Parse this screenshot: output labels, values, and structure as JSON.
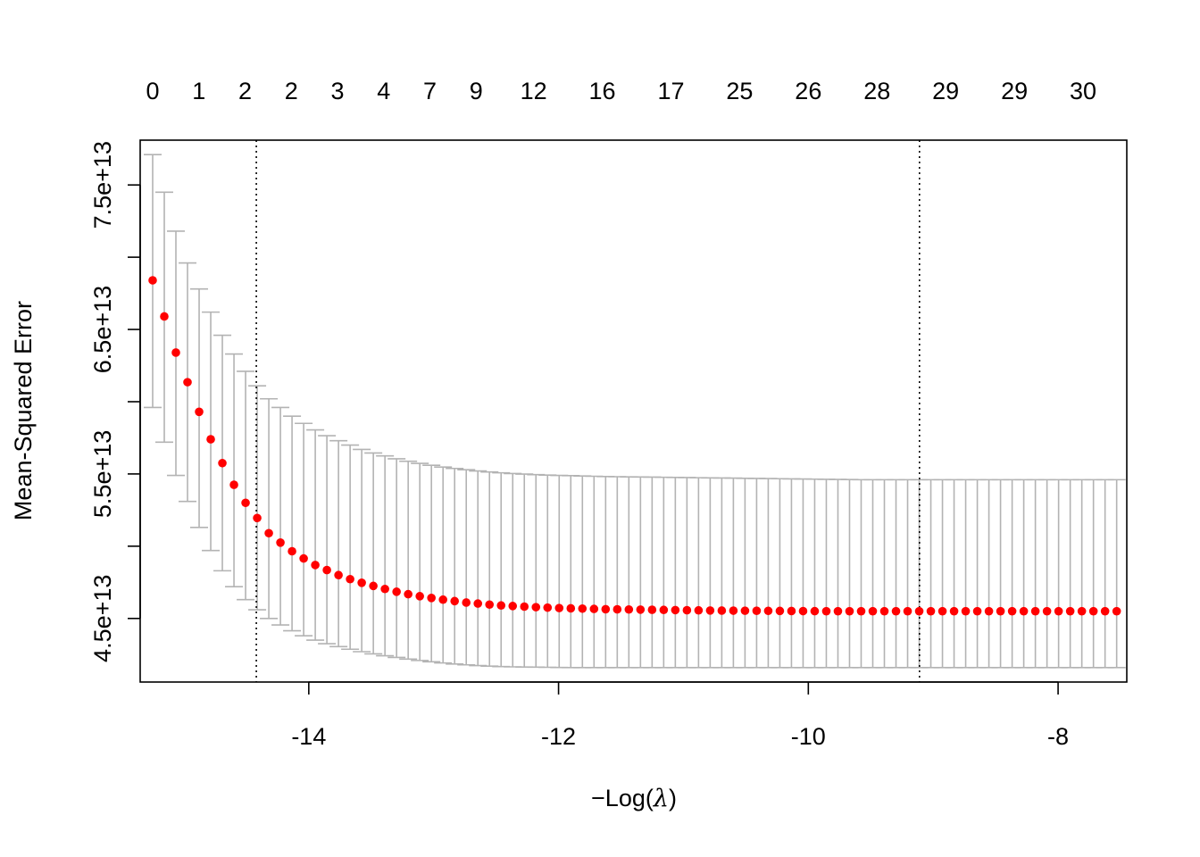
{
  "chart_data": {
    "type": "scatter",
    "xlabel": {
      "prefix": "−",
      "main": "Log(",
      "lambda": "λ",
      "suffix": ")"
    },
    "ylabel": "Mean-Squared Error",
    "xlim": [
      -15.35,
      -7.45
    ],
    "ylim": [
      40600000000000,
      78100000000000
    ],
    "x_ticks": [
      -14,
      -12,
      -10,
      -8
    ],
    "x_tick_labels": [
      "-14",
      "-12",
      "-10",
      "-8"
    ],
    "y_ticks": [
      45000000000000,
      50000000000000,
      55000000000000,
      60000000000000,
      65000000000000,
      70000000000000,
      75000000000000
    ],
    "y_tick_labels": [
      "4.5e+13",
      "",
      "5.5e+13",
      "",
      "6.5e+13",
      "",
      "7.5e+13"
    ],
    "top_axis": {
      "x": [
        -15.25,
        -14.88,
        -14.51,
        -14.14,
        -13.77,
        -13.4,
        -13.03,
        -12.66,
        -12.2,
        -11.65,
        -11.1,
        -10.55,
        -10.0,
        -9.45,
        -8.9,
        -8.35,
        -7.8
      ],
      "labels": [
        "0",
        "1",
        "2",
        "2",
        "3",
        "4",
        "7",
        "9",
        "12",
        "16",
        "17",
        "25",
        "26",
        "28",
        "29",
        "29",
        "30"
      ]
    },
    "vlines": [
      -14.42,
      -9.11
    ],
    "series": [
      {
        "x": [
          -15.25,
          -15.157,
          -15.064,
          -14.971,
          -14.878,
          -14.785,
          -14.692,
          -14.599,
          -14.506,
          -14.413,
          -14.32,
          -14.227,
          -14.134,
          -14.041,
          -13.948,
          -13.855,
          -13.762,
          -13.669,
          -13.576,
          -13.483,
          -13.39,
          -13.297,
          -13.204,
          -13.111,
          -13.018,
          -12.925,
          -12.832,
          -12.739,
          -12.646,
          -12.553,
          -12.46,
          -12.367,
          -12.274,
          -12.181,
          -12.088,
          -11.995,
          -11.902,
          -11.809,
          -11.716,
          -11.623,
          -11.53,
          -11.437,
          -11.344,
          -11.251,
          -11.158,
          -11.065,
          -10.972,
          -10.879,
          -10.786,
          -10.693,
          -10.6,
          -10.507,
          -10.414,
          -10.321,
          -10.228,
          -10.135,
          -10.042,
          -9.949,
          -9.856,
          -9.763,
          -9.67,
          -9.577,
          -9.484,
          -9.391,
          -9.298,
          -9.205,
          -9.112,
          -9.019,
          -8.926,
          -8.833,
          -8.74,
          -8.647,
          -8.554,
          -8.461,
          -8.368,
          -8.275,
          -8.182,
          -8.089,
          -7.996,
          -7.903,
          -7.81,
          -7.717,
          -7.624,
          -7.531
        ],
        "mse": [
          68400000000000,
          65900000000000,
          63400000000000,
          61350000000000,
          59300000000000,
          57400000000000,
          55750000000000,
          54250000000000,
          53000000000000,
          51950000000000,
          50900000000000,
          50250000000000,
          49650000000000,
          49150000000000,
          48700000000000,
          48350000000000,
          48000000000000,
          47720000000000,
          47470000000000,
          47250000000000,
          47040000000000,
          46850000000000,
          46680000000000,
          46540000000000,
          46420000000000,
          46300000000000,
          46200000000000,
          46100000000000,
          46030000000000,
          45960000000000,
          45900000000000,
          45860000000000,
          45820000000000,
          45780000000000,
          45750000000000,
          45720000000000,
          45700000000000,
          45680000000000,
          45660000000000,
          45640000000000,
          45630000000000,
          45620000000000,
          45610000000000,
          45600000000000,
          45590000000000,
          45580000000000,
          45570000000000,
          45560000000000,
          45550000000000,
          45545000000000,
          45540000000000,
          45535000000000,
          45530000000000,
          45525000000000,
          45520000000000,
          45515000000000,
          45510000000000,
          45505000000000,
          45500000000000,
          45500000000000,
          45500000000000,
          45500000000000,
          45500000000000,
          45500000000000,
          45500000000000,
          45500000000000,
          45500000000000,
          45500000000000,
          45500000000000,
          45500000000000,
          45500000000000,
          45500000000000,
          45500000000000,
          45500000000000,
          45500000000000,
          45500000000000,
          45500000000000,
          45500000000000,
          45500000000000,
          45500000000000,
          45500000000000,
          45500000000000,
          45500000000000,
          45500000000000
        ],
        "upper": [
          77100000000000,
          74500000000000,
          71800000000000,
          69600000000000,
          67800000000000,
          66200000000000,
          64600000000000,
          63300000000000,
          62100000000000,
          61100000000000,
          60200000000000,
          59600000000000,
          59000000000000,
          58500000000000,
          58050000000000,
          57650000000000,
          57300000000000,
          57000000000000,
          56700000000000,
          56450000000000,
          56250000000000,
          56050000000000,
          55880000000000,
          55730000000000,
          55600000000000,
          55480000000000,
          55380000000000,
          55290000000000,
          55210000000000,
          55140000000000,
          55080000000000,
          55030000000000,
          54990000000000,
          54950000000000,
          54920000000000,
          54900000000000,
          54880000000000,
          54860000000000,
          54840000000000,
          54820000000000,
          54810000000000,
          54800000000000,
          54790000000000,
          54780000000000,
          54770000000000,
          54760000000000,
          54750000000000,
          54740000000000,
          54730000000000,
          54720000000000,
          54710000000000,
          54700000000000,
          54690000000000,
          54680000000000,
          54670000000000,
          54660000000000,
          54650000000000,
          54640000000000,
          54630000000000,
          54620000000000,
          54610000000000,
          54600000000000,
          54600000000000,
          54600000000000,
          54600000000000,
          54600000000000,
          54600000000000,
          54600000000000,
          54600000000000,
          54600000000000,
          54600000000000,
          54600000000000,
          54600000000000,
          54600000000000,
          54600000000000,
          54600000000000,
          54600000000000,
          54600000000000,
          54600000000000,
          54600000000000,
          54600000000000,
          54600000000000,
          54600000000000,
          54600000000000
        ],
        "lower": [
          59600000000000,
          57200000000000,
          54900000000000,
          53100000000000,
          51300000000000,
          49700000000000,
          48300000000000,
          47200000000000,
          46300000000000,
          45600000000000,
          45000000000000,
          44550000000000,
          44150000000000,
          43800000000000,
          43500000000000,
          43250000000000,
          43050000000000,
          42870000000000,
          42700000000000,
          42550000000000,
          42420000000000,
          42300000000000,
          42190000000000,
          42090000000000,
          42000000000000,
          41920000000000,
          41850000000000,
          41790000000000,
          41740000000000,
          41700000000000,
          41670000000000,
          41650000000000,
          41640000000000,
          41630000000000,
          41620000000000,
          41610000000000,
          41600000000000,
          41600000000000,
          41600000000000,
          41600000000000,
          41600000000000,
          41600000000000,
          41600000000000,
          41600000000000,
          41600000000000,
          41600000000000,
          41600000000000,
          41600000000000,
          41600000000000,
          41600000000000,
          41600000000000,
          41600000000000,
          41600000000000,
          41600000000000,
          41600000000000,
          41600000000000,
          41600000000000,
          41600000000000,
          41600000000000,
          41600000000000,
          41600000000000,
          41600000000000,
          41600000000000,
          41600000000000,
          41600000000000,
          41600000000000,
          41600000000000,
          41600000000000,
          41600000000000,
          41600000000000,
          41600000000000,
          41600000000000,
          41600000000000,
          41600000000000,
          41600000000000,
          41600000000000,
          41600000000000,
          41600000000000,
          41600000000000,
          41600000000000,
          41600000000000,
          41600000000000,
          41600000000000,
          41600000000000
        ]
      }
    ],
    "colors": {
      "points": "#ff0000",
      "error_bars": "#b3b3b3",
      "vlines": "#000000",
      "frame": "#000000"
    },
    "grid": false
  }
}
